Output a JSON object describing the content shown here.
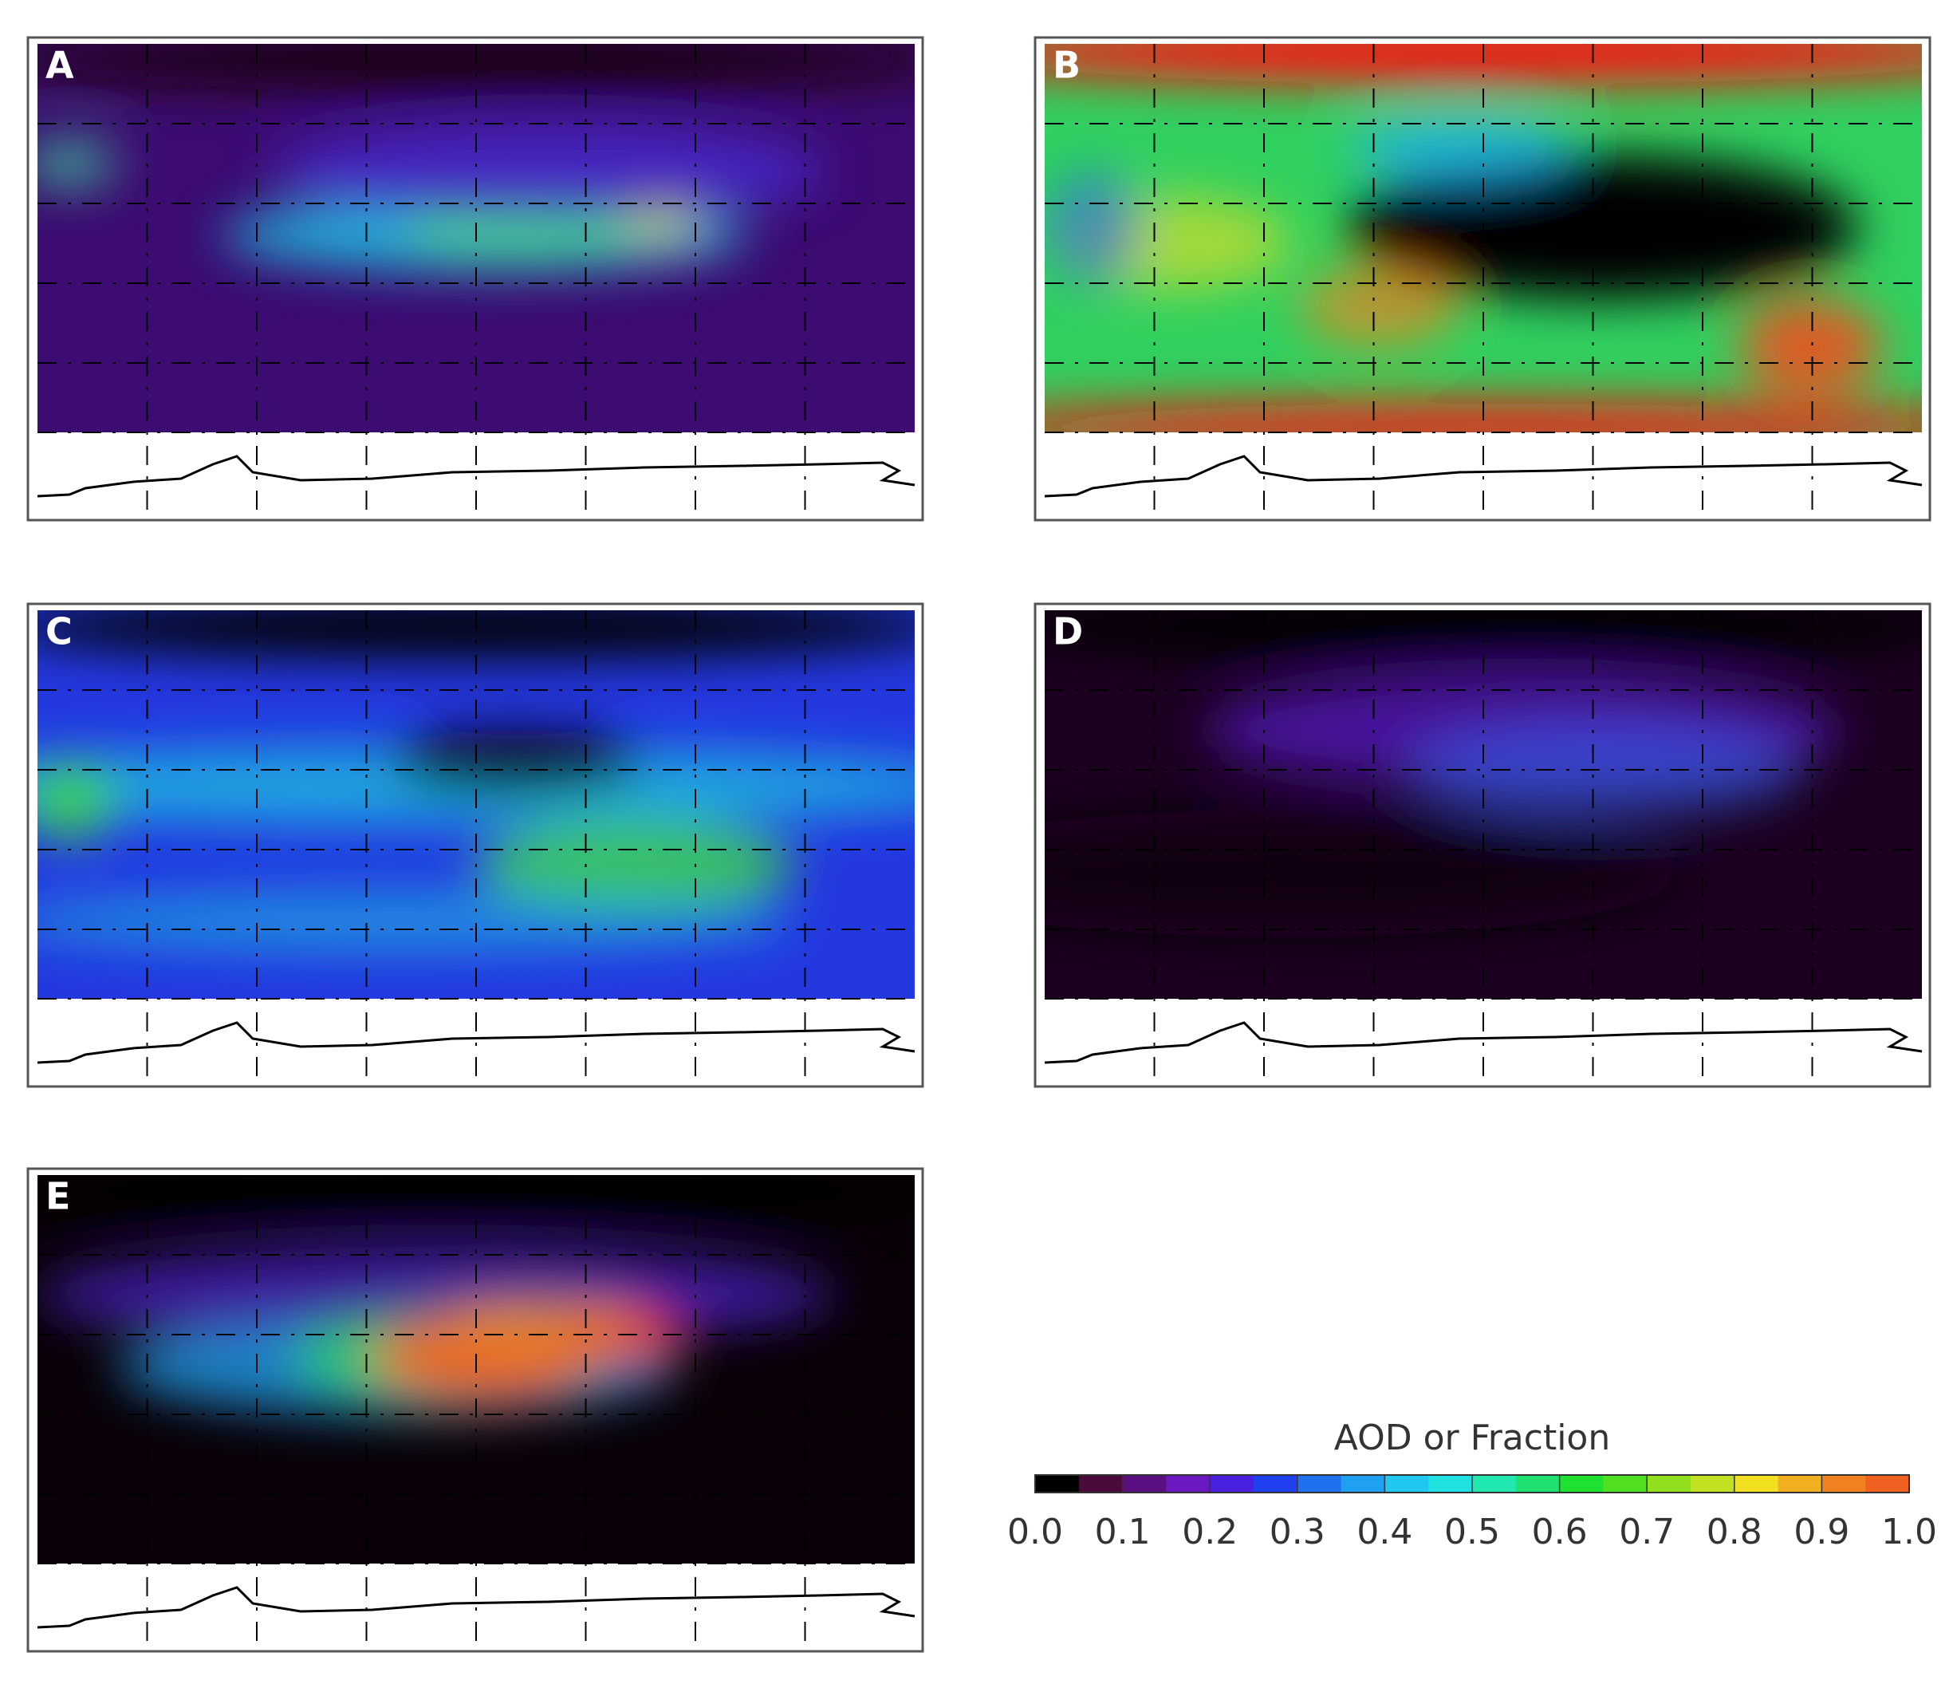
{
  "panels": [
    {
      "label": "A"
    },
    {
      "label": "B"
    },
    {
      "label": "C"
    },
    {
      "label": "D"
    },
    {
      "label": "E"
    }
  ],
  "colorbar": {
    "title": "AOD or Fraction",
    "lim": [
      0,
      1
    ],
    "ticks": [
      {
        "value": 0,
        "label": "0.0"
      },
      {
        "value": 0.1,
        "label": "0.1"
      },
      {
        "value": 0.2,
        "label": "0.2"
      },
      {
        "value": 0.3,
        "label": "0.3"
      },
      {
        "value": 0.4,
        "label": "0.4"
      },
      {
        "value": 0.5,
        "label": "0.5"
      },
      {
        "value": 0.6,
        "label": "0.6"
      },
      {
        "value": 0.7,
        "label": "0.7"
      },
      {
        "value": 0.8,
        "label": "0.8"
      },
      {
        "value": 0.9,
        "label": "0.9"
      },
      {
        "value": 1,
        "label": "1.0"
      }
    ],
    "colors": [
      "#000000",
      "#4a0a3a",
      "#5a1080",
      "#6a18c0",
      "#4a20e0",
      "#2040f0",
      "#2070f0",
      "#20a0f0",
      "#20c8f0",
      "#20e0e0",
      "#20e8b0",
      "#20e070",
      "#20e030",
      "#50e020",
      "#90e020",
      "#c0e020",
      "#f0e020",
      "#f0b020",
      "#f08020",
      "#f06020"
    ]
  }
}
